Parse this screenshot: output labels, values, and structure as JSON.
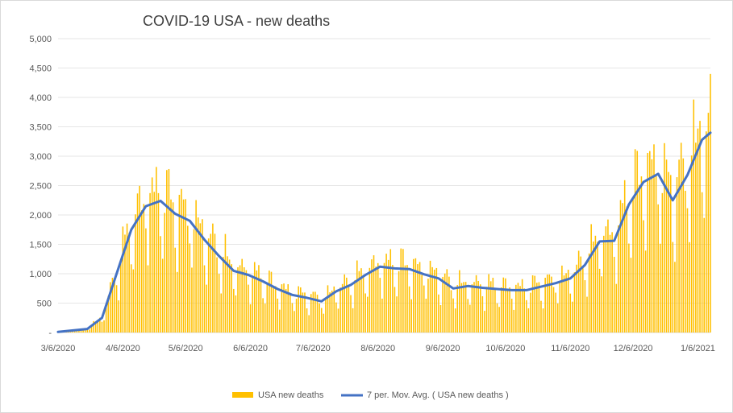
{
  "chart_data": {
    "type": "bar+line",
    "title": "COVID-19 USA - new deaths",
    "xlabel": "",
    "ylabel": "",
    "ylim": [
      0,
      5000
    ],
    "y_ticks": [
      0,
      500,
      1000,
      1500,
      2000,
      2500,
      3000,
      3500,
      4000,
      4500,
      5000
    ],
    "y_tick_labels": [
      "-",
      "500",
      "1,000",
      "1,500",
      "2,000",
      "2,500",
      "3,000",
      "3,500",
      "4,000",
      "4,500",
      "5,000"
    ],
    "x_tick_labels": [
      "3/6/2020",
      "4/6/2020",
      "5/6/2020",
      "6/6/2020",
      "7/6/2020",
      "8/6/2020",
      "9/6/2020",
      "10/6/2020",
      "11/6/2020",
      "12/6/2020",
      "1/6/2021"
    ],
    "x_range": [
      "2020-03-06",
      "2021-01-12"
    ],
    "grid": "horizontal",
    "legend_position": "bottom",
    "series": [
      {
        "name": "USA new deaths",
        "kind": "bar",
        "color": "#FFC000",
        "weekly_profile": [
          0.75,
          0.55,
          1.05,
          1.25,
          1.2,
          1.15,
          1.05
        ],
        "moving_average_dates": [
          "2020-03-06",
          "2020-03-20",
          "2020-03-27",
          "2020-04-03",
          "2020-04-10",
          "2020-04-17",
          "2020-04-24",
          "2020-05-01",
          "2020-05-08",
          "2020-05-15",
          "2020-05-22",
          "2020-05-29",
          "2020-06-05",
          "2020-06-12",
          "2020-06-19",
          "2020-06-26",
          "2020-07-03",
          "2020-07-10",
          "2020-07-17",
          "2020-07-24",
          "2020-07-31",
          "2020-08-07",
          "2020-08-14",
          "2020-08-21",
          "2020-08-28",
          "2020-09-04",
          "2020-09-11",
          "2020-09-18",
          "2020-09-25",
          "2020-10-02",
          "2020-10-09",
          "2020-10-16",
          "2020-10-23",
          "2020-10-30",
          "2020-11-06",
          "2020-11-13",
          "2020-11-20",
          "2020-11-27",
          "2020-12-04",
          "2020-12-11",
          "2020-12-18",
          "2020-12-25",
          "2021-01-01",
          "2021-01-08",
          "2021-01-12"
        ]
      },
      {
        "name": "7 per. Mov. Avg. ( USA new deaths )",
        "kind": "line",
        "color": "#4472C4",
        "x": [
          "2020-03-06",
          "2020-03-20",
          "2020-03-27",
          "2020-04-03",
          "2020-04-10",
          "2020-04-17",
          "2020-04-24",
          "2020-05-01",
          "2020-05-08",
          "2020-05-15",
          "2020-05-22",
          "2020-05-29",
          "2020-06-05",
          "2020-06-12",
          "2020-06-19",
          "2020-06-26",
          "2020-07-03",
          "2020-07-10",
          "2020-07-17",
          "2020-07-24",
          "2020-07-31",
          "2020-08-07",
          "2020-08-14",
          "2020-08-21",
          "2020-08-28",
          "2020-09-04",
          "2020-09-11",
          "2020-09-18",
          "2020-09-25",
          "2020-10-02",
          "2020-10-09",
          "2020-10-16",
          "2020-10-23",
          "2020-10-30",
          "2020-11-06",
          "2020-11-13",
          "2020-11-20",
          "2020-11-27",
          "2020-12-04",
          "2020-12-11",
          "2020-12-18",
          "2020-12-25",
          "2021-01-01",
          "2021-01-08",
          "2021-01-12"
        ],
        "values": [
          10,
          60,
          250,
          1000,
          1750,
          2150,
          2240,
          2020,
          1900,
          1580,
          1300,
          1050,
          980,
          870,
          740,
          640,
          590,
          530,
          700,
          810,
          980,
          1120,
          1090,
          1080,
          990,
          920,
          750,
          790,
          760,
          740,
          720,
          720,
          780,
          840,
          920,
          1150,
          1550,
          1560,
          2180,
          2560,
          2700,
          2250,
          2680,
          3280,
          3400
        ]
      }
    ]
  }
}
